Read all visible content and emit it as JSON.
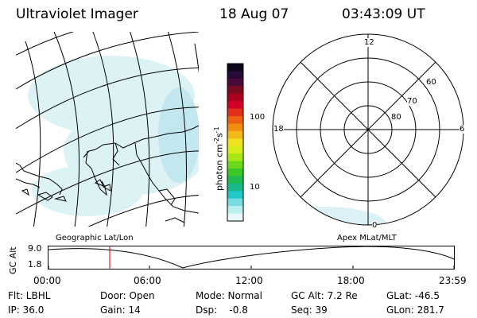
{
  "header": {
    "title": "Ultraviolet Imager",
    "date": "18 Aug 07",
    "time": "03:43:09 UT"
  },
  "colorbar": {
    "unit_label": "photon cm",
    "unit_sup1": "-2",
    "unit_s": "s",
    "unit_sup2": "-1",
    "tick_100": "100",
    "tick_10": "10",
    "colors": [
      "#0c0618",
      "#240b3a",
      "#4a0a38",
      "#7a0a1e",
      "#a8001e",
      "#d0002a",
      "#e0301a",
      "#ec6010",
      "#f08c14",
      "#f4b818",
      "#f0e020",
      "#d8ec1a",
      "#a8e614",
      "#6cd81a",
      "#38c82a",
      "#20b850",
      "#18b88c",
      "#20c8c8",
      "#78dce0",
      "#b8eef0",
      "#e8f8fa"
    ]
  },
  "polar_plot": {
    "label_12": "12",
    "label_18": "18",
    "label_6": "6",
    "label_0": "0",
    "lat_60": "60",
    "lat_70": "70",
    "lat_80": "80"
  },
  "coord_labels": {
    "left": "Geographic Lat/Lon",
    "right": "Apex MLat/MLT"
  },
  "altitude_plot": {
    "axis_title": "GC Alt",
    "y_ticks": [
      "9.0",
      "1.8"
    ],
    "x_ticks": [
      "00:00",
      "06:00",
      "12:00",
      "18:00",
      "23:59"
    ],
    "marker_time": "03:43"
  },
  "info": {
    "flt": "Flt: LBHL",
    "door": "Door: Open",
    "mode": "Mode: Normal",
    "gc_alt": "GC Alt: 7.2 Re",
    "glat": "GLat: -46.5",
    "ip": "IP: 36.0",
    "gain": "Gain: 14",
    "dsp": "Dsp:    -0.8",
    "seq": "Seq: 39",
    "glon": "GLon: 281.7"
  }
}
